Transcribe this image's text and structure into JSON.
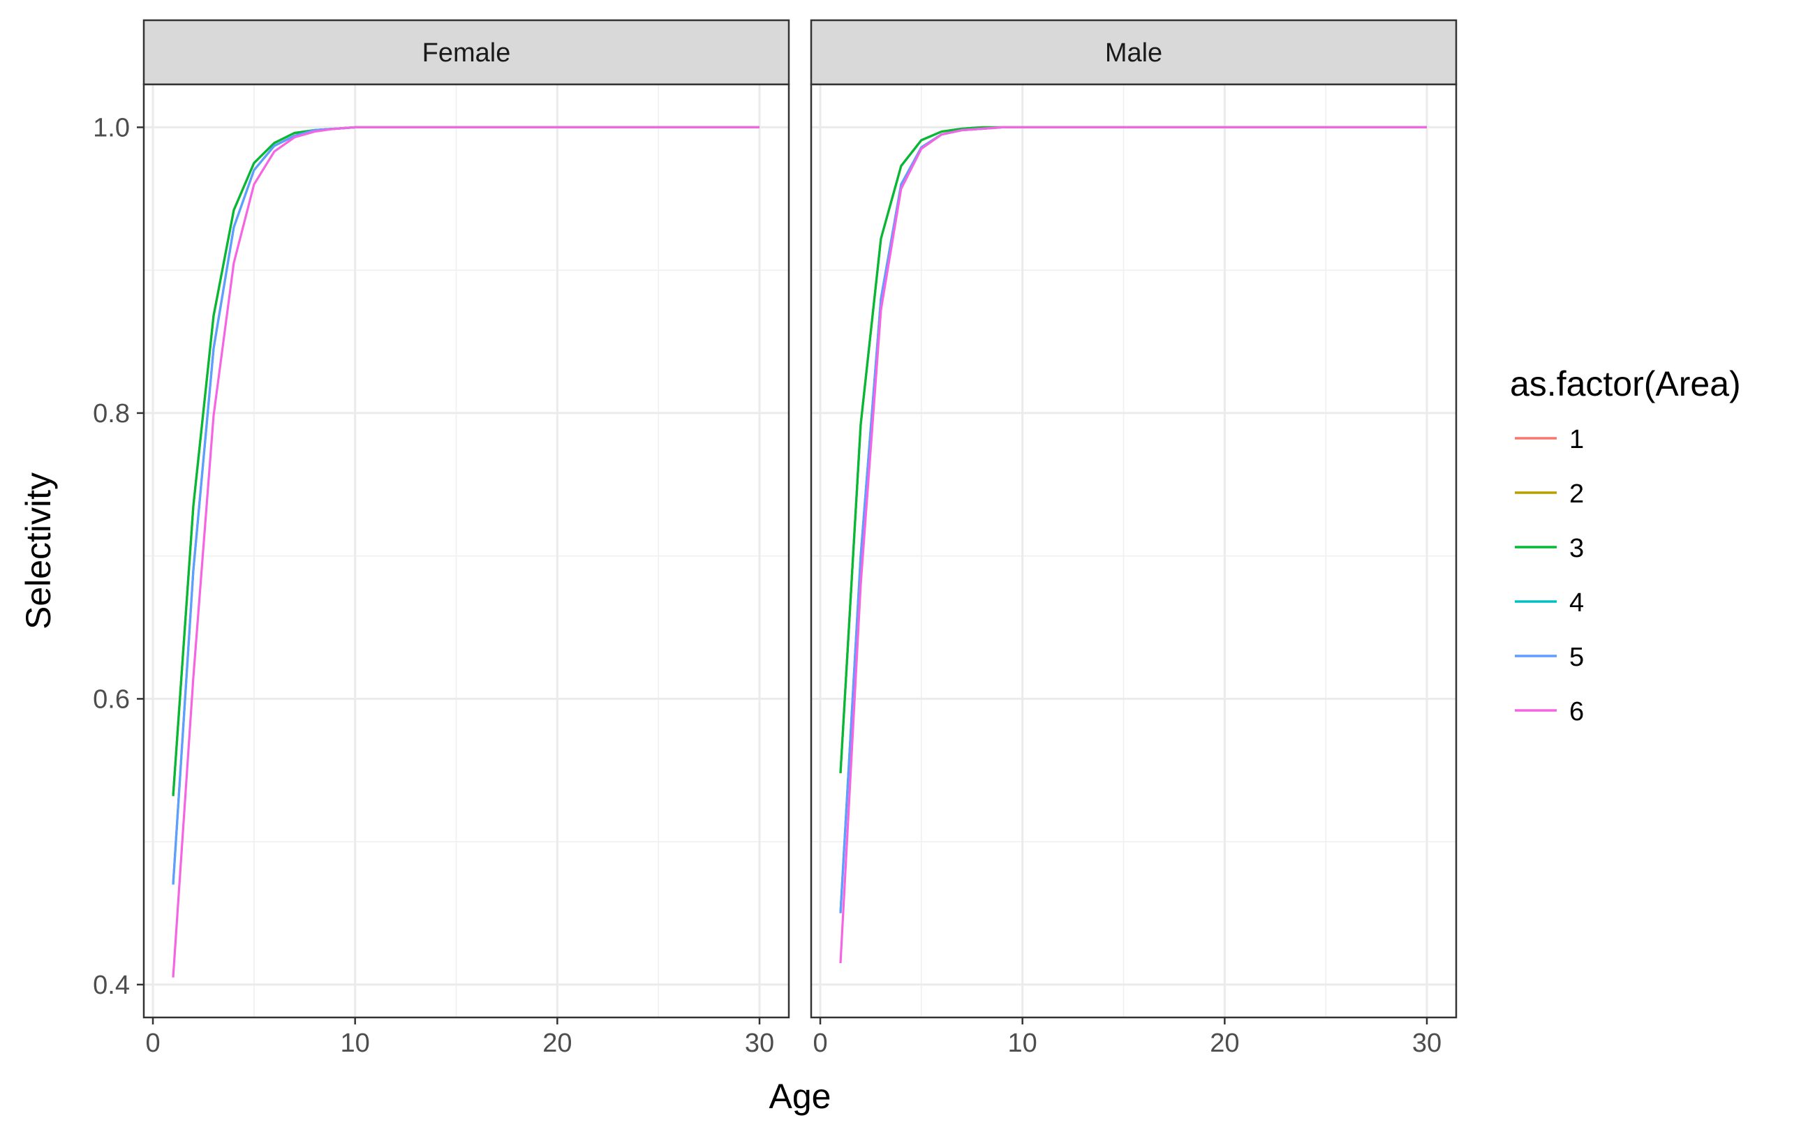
{
  "chart_data": {
    "type": "line",
    "xlabel": "Age",
    "ylabel": "Selectivity",
    "xlim": [
      -0.45,
      31.45
    ],
    "ylim": [
      0.377,
      1.03
    ],
    "x_ticks": [
      0,
      10,
      20,
      30
    ],
    "x_tick_labels": [
      "0",
      "10",
      "20",
      "30"
    ],
    "y_ticks": [
      0.4,
      0.6,
      0.8,
      1.0
    ],
    "y_tick_labels": [
      "0.4",
      "0.6",
      "0.8",
      "1.0"
    ],
    "grid": true,
    "legend": {
      "title": "as.factor(Area)",
      "placement": "right",
      "entries": [
        {
          "label": "1",
          "color": "#F8766D"
        },
        {
          "label": "2",
          "color": "#B79F00"
        },
        {
          "label": "3",
          "color": "#00BA38"
        },
        {
          "label": "4",
          "color": "#00BFC4"
        },
        {
          "label": "5",
          "color": "#619CFF"
        },
        {
          "label": "6",
          "color": "#F564E3"
        }
      ]
    },
    "panels": [
      {
        "name": "Female",
        "series": [
          {
            "name": "1",
            "color": "#F8766D",
            "x": [
              1,
              2,
              3,
              4,
              5,
              6,
              7,
              8,
              9,
              10,
              11,
              12,
              15,
              20,
              25,
              30
            ],
            "y": [
              0.532,
              0.735,
              0.868,
              0.942,
              0.975,
              0.989,
              0.996,
              0.998,
              0.999,
              1.0,
              1.0,
              1.0,
              1.0,
              1.0,
              1.0,
              1.0
            ]
          },
          {
            "name": "2",
            "color": "#B79F00",
            "x": [
              1,
              2,
              3,
              4,
              5,
              6,
              7,
              8,
              9,
              10,
              11,
              12,
              15,
              20,
              25,
              30
            ],
            "y": [
              0.532,
              0.735,
              0.868,
              0.942,
              0.975,
              0.989,
              0.996,
              0.998,
              0.999,
              1.0,
              1.0,
              1.0,
              1.0,
              1.0,
              1.0,
              1.0
            ]
          },
          {
            "name": "3",
            "color": "#00BA38",
            "x": [
              1,
              2,
              3,
              4,
              5,
              6,
              7,
              8,
              9,
              10,
              11,
              12,
              15,
              20,
              25,
              30
            ],
            "y": [
              0.532,
              0.735,
              0.868,
              0.942,
              0.975,
              0.989,
              0.996,
              0.998,
              0.999,
              1.0,
              1.0,
              1.0,
              1.0,
              1.0,
              1.0,
              1.0
            ]
          },
          {
            "name": "4",
            "color": "#00BFC4",
            "x": [
              1,
              2,
              3,
              4,
              5,
              6,
              7,
              8,
              9,
              10,
              11,
              12,
              15,
              20,
              25,
              30
            ],
            "y": [
              0.47,
              0.69,
              0.845,
              0.93,
              0.97,
              0.987,
              0.994,
              0.998,
              0.999,
              1.0,
              1.0,
              1.0,
              1.0,
              1.0,
              1.0,
              1.0
            ]
          },
          {
            "name": "5",
            "color": "#619CFF",
            "x": [
              1,
              2,
              3,
              4,
              5,
              6,
              7,
              8,
              9,
              10,
              11,
              12,
              15,
              20,
              25,
              30
            ],
            "y": [
              0.47,
              0.69,
              0.845,
              0.93,
              0.97,
              0.987,
              0.994,
              0.998,
              0.999,
              1.0,
              1.0,
              1.0,
              1.0,
              1.0,
              1.0,
              1.0
            ]
          },
          {
            "name": "6",
            "color": "#F564E3",
            "x": [
              1,
              2,
              3,
              4,
              5,
              6,
              7,
              8,
              9,
              10,
              11,
              12,
              15,
              20,
              25,
              30
            ],
            "y": [
              0.405,
              0.615,
              0.798,
              0.905,
              0.96,
              0.983,
              0.993,
              0.997,
              0.999,
              1.0,
              1.0,
              1.0,
              1.0,
              1.0,
              1.0,
              1.0
            ]
          }
        ]
      },
      {
        "name": "Male",
        "series": [
          {
            "name": "1",
            "color": "#F8766D",
            "x": [
              1,
              2,
              3,
              4,
              5,
              6,
              7,
              8,
              9,
              10,
              11,
              12,
              15,
              20,
              25,
              30
            ],
            "y": [
              0.548,
              0.792,
              0.922,
              0.973,
              0.991,
              0.997,
              0.999,
              1.0,
              1.0,
              1.0,
              1.0,
              1.0,
              1.0,
              1.0,
              1.0,
              1.0
            ]
          },
          {
            "name": "2",
            "color": "#B79F00",
            "x": [
              1,
              2,
              3,
              4,
              5,
              6,
              7,
              8,
              9,
              10,
              11,
              12,
              15,
              20,
              25,
              30
            ],
            "y": [
              0.548,
              0.792,
              0.922,
              0.973,
              0.991,
              0.997,
              0.999,
              1.0,
              1.0,
              1.0,
              1.0,
              1.0,
              1.0,
              1.0,
              1.0,
              1.0
            ]
          },
          {
            "name": "3",
            "color": "#00BA38",
            "x": [
              1,
              2,
              3,
              4,
              5,
              6,
              7,
              8,
              9,
              10,
              11,
              12,
              15,
              20,
              25,
              30
            ],
            "y": [
              0.548,
              0.792,
              0.922,
              0.973,
              0.991,
              0.997,
              0.999,
              1.0,
              1.0,
              1.0,
              1.0,
              1.0,
              1.0,
              1.0,
              1.0,
              1.0
            ]
          },
          {
            "name": "4",
            "color": "#00BFC4",
            "x": [
              1,
              2,
              3,
              4,
              5,
              6,
              7,
              8,
              9,
              10,
              11,
              12,
              15,
              20,
              25,
              30
            ],
            "y": [
              0.45,
              0.7,
              0.88,
              0.96,
              0.986,
              0.995,
              0.998,
              0.999,
              1.0,
              1.0,
              1.0,
              1.0,
              1.0,
              1.0,
              1.0,
              1.0
            ]
          },
          {
            "name": "5",
            "color": "#619CFF",
            "x": [
              1,
              2,
              3,
              4,
              5,
              6,
              7,
              8,
              9,
              10,
              11,
              12,
              15,
              20,
              25,
              30
            ],
            "y": [
              0.45,
              0.7,
              0.88,
              0.96,
              0.986,
              0.995,
              0.998,
              0.999,
              1.0,
              1.0,
              1.0,
              1.0,
              1.0,
              1.0,
              1.0,
              1.0
            ]
          },
          {
            "name": "6",
            "color": "#F564E3",
            "x": [
              1,
              2,
              3,
              4,
              5,
              6,
              7,
              8,
              9,
              10,
              11,
              12,
              15,
              20,
              25,
              30
            ],
            "y": [
              0.415,
              0.68,
              0.872,
              0.957,
              0.985,
              0.995,
              0.998,
              0.999,
              1.0,
              1.0,
              1.0,
              1.0,
              1.0,
              1.0,
              1.0,
              1.0
            ]
          }
        ]
      }
    ]
  }
}
